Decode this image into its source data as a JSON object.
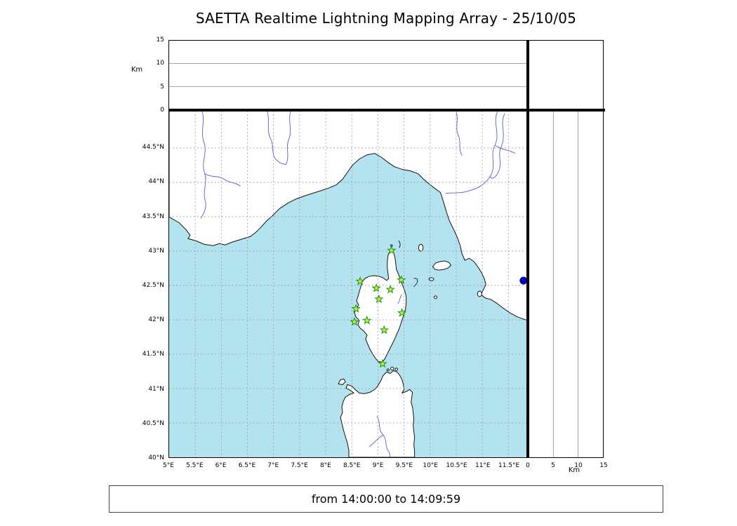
{
  "title": "SAETTA Realtime Lightning Mapping Array - 25/10/05",
  "status_bar": {
    "text": "from 14:00:00 to 14:09:59"
  },
  "colors": {
    "sea": "#b4e3f0",
    "land": "#ffffff",
    "coastline": "#111111",
    "grid": "#999999",
    "river": "#5b5bd6",
    "station_fill": "#adff2f",
    "station_edge": "#228b22",
    "detection": "#0000bb",
    "panel_border": "#000000"
  },
  "chart_data": {
    "type": "map",
    "title": "SAETTA Realtime Lightning Mapping Array - 25/10/05",
    "time_window": "from 14:00:00 to 14:09:59",
    "panels": {
      "alt_vs_lon": {
        "ylabel": "Km",
        "ylim": [
          0,
          15
        ],
        "yticks": [
          {
            "v": 0,
            "label": "0"
          },
          {
            "v": 5,
            "label": "5"
          },
          {
            "v": 10,
            "label": "10"
          },
          {
            "v": 15,
            "label": "15"
          }
        ],
        "gridlines_km": [
          5,
          10
        ],
        "points": []
      },
      "map": {
        "lon_range": [
          5,
          11.86
        ],
        "lat_range": [
          40,
          45.04
        ],
        "lon_ticks": [
          {
            "v": 5,
            "label": "5°E"
          },
          {
            "v": 5.5,
            "label": "5.5°E"
          },
          {
            "v": 6,
            "label": "6°E"
          },
          {
            "v": 6.5,
            "label": "6.5°E"
          },
          {
            "v": 7,
            "label": "7°E"
          },
          {
            "v": 7.5,
            "label": "7.5°E"
          },
          {
            "v": 8,
            "label": "8°E"
          },
          {
            "v": 8.5,
            "label": "8.5°E"
          },
          {
            "v": 9,
            "label": "9°E"
          },
          {
            "v": 9.5,
            "label": "9.5°E"
          },
          {
            "v": 10,
            "label": "10°E"
          },
          {
            "v": 10.5,
            "label": "10.5°E"
          },
          {
            "v": 11,
            "label": "11°E"
          },
          {
            "v": 11.5,
            "label": "11.5°E"
          }
        ],
        "lat_ticks": [
          {
            "v": 44.5,
            "label": "44.5°N"
          },
          {
            "v": 44,
            "label": "44°N"
          },
          {
            "v": 43.5,
            "label": "43.5°N"
          },
          {
            "v": 43,
            "label": "43°N"
          },
          {
            "v": 42.5,
            "label": "42.5°N"
          },
          {
            "v": 42,
            "label": "42°N"
          },
          {
            "v": 41.5,
            "label": "41.5°N"
          },
          {
            "v": 41,
            "label": "41°N"
          },
          {
            "v": 40.5,
            "label": "40.5°N"
          },
          {
            "v": 40,
            "label": "40°N"
          }
        ],
        "lon_gridlines": [
          5.5,
          6,
          6.5,
          7,
          7.5,
          8,
          8.5,
          9,
          9.5,
          10,
          10.5,
          11,
          11.5
        ],
        "lat_gridlines": [
          40.5,
          41,
          41.5,
          42,
          42.5,
          43,
          43.5,
          44,
          44.5
        ],
        "grid_style": "dashed"
      },
      "alt_vs_lat": {
        "xlabel": "Km",
        "xlim": [
          0,
          15
        ],
        "xticks": [
          {
            "v": 0,
            "label": "0"
          },
          {
            "v": 5,
            "label": "5"
          },
          {
            "v": 10,
            "label": "10"
          },
          {
            "v": 15,
            "label": "15"
          }
        ],
        "gridlines_km": [
          5,
          10
        ],
        "points": []
      }
    },
    "stations": [
      {
        "lon": 9.26,
        "lat": 43.01
      },
      {
        "lon": 8.66,
        "lat": 42.56
      },
      {
        "lon": 8.97,
        "lat": 42.46
      },
      {
        "lon": 9.24,
        "lat": 42.44
      },
      {
        "lon": 9.45,
        "lat": 42.58
      },
      {
        "lon": 9.02,
        "lat": 42.3
      },
      {
        "lon": 8.58,
        "lat": 42.16
      },
      {
        "lon": 9.46,
        "lat": 42.1
      },
      {
        "lon": 8.55,
        "lat": 41.97
      },
      {
        "lon": 8.79,
        "lat": 41.99
      },
      {
        "lon": 9.12,
        "lat": 41.85
      },
      {
        "lon": 9.09,
        "lat": 41.36
      }
    ],
    "detection_point": {
      "lon": 11.79,
      "lat": 42.57
    }
  }
}
